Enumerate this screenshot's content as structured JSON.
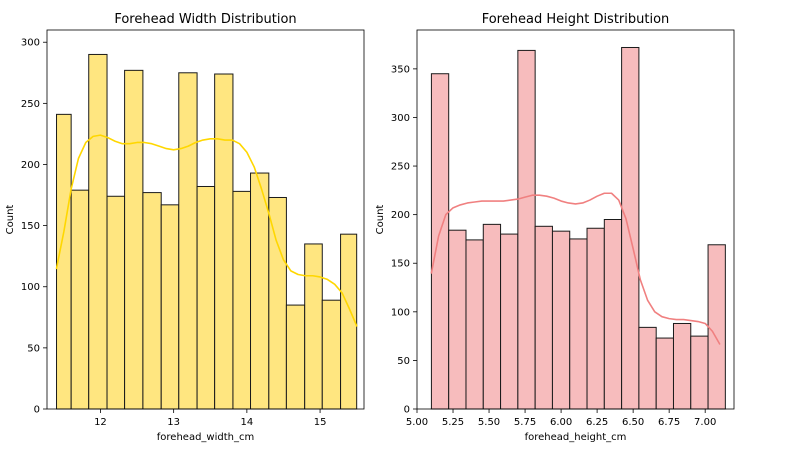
{
  "chart_data": [
    {
      "type": "histogram",
      "title": "Forehead Width Distribution",
      "xlabel": "forehead_width_cm",
      "ylabel": "Count",
      "xlim": [
        11.27,
        15.6
      ],
      "ylim": [
        0,
        310
      ],
      "bin_edges": [
        11.4,
        11.6,
        11.84,
        12.09,
        12.33,
        12.58,
        12.83,
        13.07,
        13.32,
        13.56,
        13.81,
        14.05,
        14.3,
        14.54,
        14.79,
        15.03,
        15.28,
        15.5
      ],
      "counts": [
        241,
        179,
        290,
        174,
        277,
        177,
        167,
        275,
        182,
        274,
        178,
        193,
        173,
        85,
        135,
        89,
        143
      ],
      "xticks": [
        {
          "v": 12,
          "label": "12"
        },
        {
          "v": 13,
          "label": "13"
        },
        {
          "v": 14,
          "label": "14"
        },
        {
          "v": 15,
          "label": "15"
        }
      ],
      "yticks": [
        {
          "v": 0,
          "label": "0"
        },
        {
          "v": 50,
          "label": "50"
        },
        {
          "v": 100,
          "label": "100"
        },
        {
          "v": 150,
          "label": "150"
        },
        {
          "v": 200,
          "label": "200"
        },
        {
          "v": 250,
          "label": "250"
        },
        {
          "v": 300,
          "label": "300"
        }
      ],
      "kde": {
        "x": [
          11.4,
          11.5,
          11.6,
          11.7,
          11.8,
          11.9,
          12.0,
          12.1,
          12.2,
          12.3,
          12.4,
          12.5,
          12.6,
          12.7,
          12.8,
          12.9,
          13.0,
          13.1,
          13.2,
          13.3,
          13.4,
          13.5,
          13.6,
          13.7,
          13.8,
          13.9,
          14.0,
          14.1,
          14.2,
          14.3,
          14.4,
          14.5,
          14.6,
          14.7,
          14.8,
          14.9,
          15.0,
          15.1,
          15.2,
          15.3,
          15.4,
          15.5
        ],
        "y": [
          115,
          145,
          180,
          205,
          218,
          223,
          224,
          222,
          219,
          217,
          217,
          218,
          218,
          217,
          215,
          213,
          212,
          213,
          215,
          218,
          220,
          221,
          221,
          220,
          220,
          217,
          210,
          198,
          180,
          160,
          138,
          122,
          113,
          110,
          109,
          109,
          108,
          106,
          102,
          95,
          82,
          68
        ]
      },
      "bar_fill": "#ffe680",
      "line_color": "#ffd700"
    },
    {
      "type": "histogram",
      "title": "Forehead Height Distribution",
      "xlabel": "forehead_height_cm",
      "ylabel": "Count",
      "xlim": [
        5.0,
        7.2
      ],
      "ylim": [
        0,
        390
      ],
      "bin_edges": [
        5.1,
        5.22,
        5.34,
        5.46,
        5.58,
        5.7,
        5.82,
        5.94,
        6.06,
        6.18,
        6.3,
        6.42,
        6.54,
        6.66,
        6.78,
        6.9,
        7.02,
        7.14
      ],
      "counts": [
        345,
        184,
        174,
        190,
        180,
        369,
        188,
        183,
        175,
        186,
        195,
        372,
        84,
        73,
        88,
        75,
        169
      ],
      "xticks": [
        {
          "v": 5.0,
          "label": "5.00"
        },
        {
          "v": 5.25,
          "label": "5.25"
        },
        {
          "v": 5.5,
          "label": "5.50"
        },
        {
          "v": 5.75,
          "label": "5.75"
        },
        {
          "v": 6.0,
          "label": "6.00"
        },
        {
          "v": 6.25,
          "label": "6.25"
        },
        {
          "v": 6.5,
          "label": "6.50"
        },
        {
          "v": 6.75,
          "label": "6.75"
        },
        {
          "v": 7.0,
          "label": "7.00"
        }
      ],
      "yticks": [
        {
          "v": 0,
          "label": "0"
        },
        {
          "v": 50,
          "label": "50"
        },
        {
          "v": 100,
          "label": "100"
        },
        {
          "v": 150,
          "label": "150"
        },
        {
          "v": 200,
          "label": "200"
        },
        {
          "v": 250,
          "label": "250"
        },
        {
          "v": 300,
          "label": "300"
        },
        {
          "v": 350,
          "label": "350"
        }
      ],
      "kde": {
        "x": [
          5.1,
          5.15,
          5.2,
          5.25,
          5.3,
          5.35,
          5.4,
          5.45,
          5.5,
          5.55,
          5.6,
          5.65,
          5.7,
          5.75,
          5.8,
          5.85,
          5.9,
          5.95,
          6.0,
          6.05,
          6.1,
          6.15,
          6.2,
          6.25,
          6.3,
          6.35,
          6.4,
          6.45,
          6.5,
          6.55,
          6.6,
          6.65,
          6.7,
          6.75,
          6.8,
          6.85,
          6.9,
          6.95,
          7.0,
          7.05,
          7.1
        ],
        "y": [
          140,
          178,
          200,
          207,
          210,
          212,
          213,
          214,
          214,
          214,
          214,
          215,
          216,
          218,
          220,
          220,
          219,
          217,
          214,
          212,
          211,
          212,
          215,
          219,
          222,
          222,
          215,
          196,
          165,
          133,
          112,
          100,
          95,
          93,
          92,
          92,
          91,
          90,
          88,
          80,
          67
        ]
      },
      "bar_fill": "#f7bcbd",
      "line_color": "#f08080"
    }
  ]
}
